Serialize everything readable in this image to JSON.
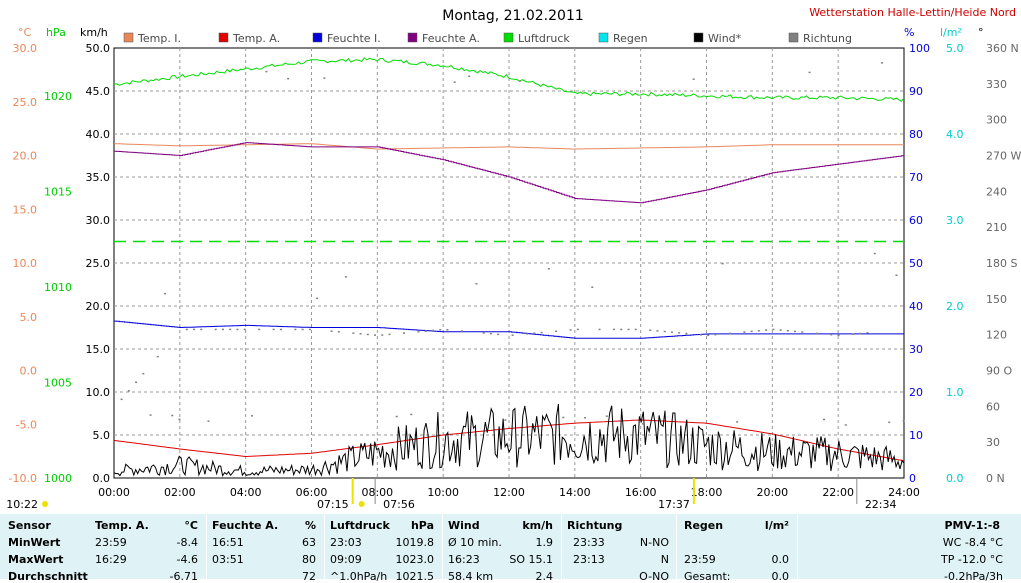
{
  "title": "Montag, 21.02.2011",
  "station": "Wetterstation Halle-Lettin/Heide Nord",
  "units": {
    "temp": "°C",
    "pressure": "hPa",
    "wind": "km/h",
    "humidity": "%",
    "rain": "l/m²",
    "dir": "°"
  },
  "legend": [
    {
      "label": "Temp. I.",
      "color": "#e8875a"
    },
    {
      "label": "Temp. A.",
      "color": "#e00000"
    },
    {
      "label": "Feuchte I.",
      "color": "#0000dd"
    },
    {
      "label": "Feuchte A.",
      "color": "#800080"
    },
    {
      "label": "Luftdruck",
      "color": "#00dd00"
    },
    {
      "label": "Regen",
      "color": "#00e5ee"
    },
    {
      "label": "Wind*",
      "color": "#000000"
    },
    {
      "label": "Richtung",
      "color": "#808080"
    }
  ],
  "chart_data": {
    "type": "line",
    "title": "Montag, 21.02.2011",
    "x": [
      0,
      2,
      4,
      6,
      8,
      10,
      12,
      14,
      16,
      18,
      20,
      22,
      24
    ],
    "x_ticks": [
      "00:00",
      "02:00",
      "04:00",
      "06:00",
      "08:00",
      "10:00",
      "12:00",
      "14:00",
      "16:00",
      "18:00",
      "20:00",
      "22:00",
      "24:00"
    ],
    "axes": {
      "temp_ticks": [
        "30.0",
        "25.0",
        "20.0",
        "15.0",
        "10.0",
        "5.0",
        "0.0",
        "-5.0",
        "-10.0"
      ],
      "pressure_ticks": [
        "1020",
        "1015",
        "1010",
        "1005",
        "1000"
      ],
      "wind_ticks": [
        "50.0",
        "45.0",
        "40.0",
        "35.0",
        "30.0",
        "25.0",
        "20.0",
        "15.0",
        "10.0",
        "5.0",
        "0.0"
      ],
      "humidity_ticks": [
        "100",
        "90",
        "80",
        "70",
        "60",
        "50",
        "40",
        "30",
        "20",
        "10",
        "0"
      ],
      "rain_ticks": [
        "5.0",
        "4.0",
        "3.0",
        "2.0",
        "1.0",
        "0.0"
      ],
      "dir_ticks": [
        "360 N",
        "330",
        "300",
        "270 W",
        "240",
        "210",
        "180 S",
        "150",
        "120",
        "90 O",
        "60",
        "30",
        "0 N"
      ],
      "temp_range": [
        -10,
        30
      ],
      "pressure_range": [
        1000,
        1022.5
      ],
      "wind_range": [
        0,
        50
      ],
      "humidity_range": [
        0,
        100
      ],
      "rain_range": [
        0,
        5
      ],
      "dir_range": [
        0,
        360
      ]
    },
    "series": [
      {
        "name": "Temp. I.",
        "axis": "temp",
        "x": [
          0,
          2,
          4,
          6,
          8,
          10,
          12,
          14,
          16,
          18,
          20,
          22,
          24
        ],
        "values": [
          21.1,
          20.9,
          21.0,
          21.1,
          20.6,
          20.7,
          20.8,
          20.6,
          20.7,
          20.8,
          21.0,
          21.0,
          21.0
        ]
      },
      {
        "name": "Temp. A.",
        "axis": "temp",
        "x": [
          0,
          2,
          4,
          6,
          8,
          10,
          12,
          14,
          16,
          18,
          20,
          22,
          24
        ],
        "values": [
          -6.5,
          -7.3,
          -8.0,
          -7.7,
          -6.9,
          -6.0,
          -5.4,
          -4.9,
          -4.6,
          -4.9,
          -5.9,
          -7.3,
          -8.4
        ]
      },
      {
        "name": "Feuchte I.",
        "axis": "humidity",
        "x": [
          0,
          2,
          4,
          6,
          8,
          10,
          12,
          14,
          16,
          18,
          20,
          22,
          24
        ],
        "values": [
          36.5,
          35.0,
          35.5,
          35.0,
          35.0,
          34.0,
          34.0,
          32.5,
          32.5,
          33.5,
          33.5,
          33.5,
          33.5
        ]
      },
      {
        "name": "Feuchte A.",
        "axis": "humidity",
        "x": [
          0,
          2,
          4,
          6,
          8,
          10,
          12,
          14,
          16,
          18,
          20,
          22,
          24
        ],
        "values": [
          76,
          75,
          78,
          77,
          77,
          74,
          70,
          65,
          64,
          67,
          71,
          73,
          75
        ]
      },
      {
        "name": "Luftdruck",
        "axis": "pressure",
        "x": [
          0,
          2,
          4,
          6,
          8,
          10,
          12,
          14,
          16,
          18,
          20,
          22,
          24
        ],
        "values": [
          1020.6,
          1021.0,
          1021.4,
          1021.8,
          1021.9,
          1021.6,
          1021.0,
          1020.1,
          1020.1,
          1020.0,
          1019.9,
          1019.9,
          1019.8
        ]
      },
      {
        "name": "Wind*",
        "axis": "wind",
        "x": [
          0,
          2,
          4,
          6,
          8,
          10,
          12,
          14,
          16,
          18,
          20,
          22,
          24
        ],
        "values": [
          0.8,
          1.5,
          0.8,
          1.0,
          3.0,
          4.5,
          4.8,
          5.0,
          5.0,
          3.8,
          3.0,
          2.8,
          2.0
        ]
      },
      {
        "name": "Richtung",
        "axis": "dir",
        "x": [
          0,
          2,
          4,
          6,
          8,
          10,
          12,
          14,
          16,
          18,
          20,
          22,
          24
        ],
        "values": [
          60,
          125,
          125,
          125,
          120,
          125,
          120,
          125,
          125,
          120,
          125,
          120,
          125
        ]
      }
    ],
    "reference_lines": [
      {
        "axis": "wind",
        "value": 27.5,
        "color": "#00dd00"
      }
    ],
    "sun": {
      "sunrise": "07:15",
      "sunset": "17:37",
      "moonrise": "07:56",
      "moonset": "22:34",
      "first_label": "10:22"
    }
  },
  "stats": {
    "headers": [
      "Sensor",
      "Temp. A.",
      "°C",
      "Feuchte A.",
      "%",
      "Luftdruck",
      "hPa",
      "Wind",
      "km/h",
      "Richtung",
      "Regen",
      "l/m²",
      "PMV-1:-8"
    ],
    "rows": [
      [
        "MinWert",
        "23:59",
        "-8.4",
        "16:51",
        "63",
        "23:03",
        "1019.8",
        "Ø 10 min.",
        "1.9",
        "23:33",
        "N-NO",
        "",
        "",
        "WC -8.4 °C"
      ],
      [
        "MaxWert",
        "16:29",
        "-4.6",
        "03:51",
        "80",
        "09:09",
        "1023.0",
        "16:23",
        "SO 15.1",
        "23:13",
        "N",
        "23:59",
        "0.0",
        "TP -12.0 °C"
      ],
      [
        "Durchschnitt",
        "",
        "-6.71",
        "",
        "72",
        "^1.0hPa/h",
        "1021.5",
        "58.4 km",
        "2.4",
        "",
        "O-NO",
        "Gesamt:",
        "0.0",
        "-0.2hPa/3h"
      ]
    ]
  }
}
